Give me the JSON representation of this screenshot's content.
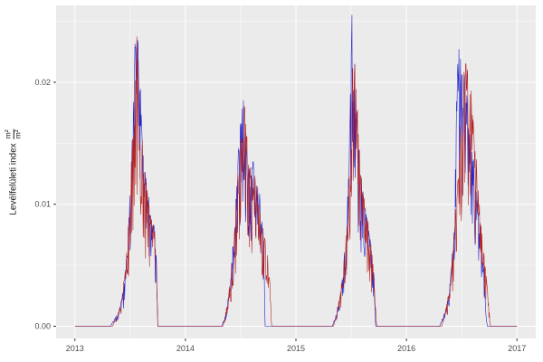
{
  "chart": {
    "theme": {
      "background": "#FFFFFF",
      "panel_background": "#EBEBEB",
      "grid_major_color": "#FFFFFF",
      "grid_minor_color": "#FFFFFF",
      "tick_label_color": "#4D4D4D",
      "tick_mark_color": "#333333",
      "axis_title_color": "#1A1A1A"
    }
  },
  "chart_data": {
    "type": "line",
    "title": "",
    "xlabel": "",
    "ylabel": "Levélfelületi index m²/m²",
    "ylabel_parts": {
      "text": "Levélfelületi index",
      "fraction_numerator": "m²",
      "fraction_denominator": "m²"
    },
    "x_ticks": [
      2013,
      2014,
      2015,
      2016,
      2017
    ],
    "y_ticks": [
      "0.00",
      "0.01",
      "0.02"
    ],
    "y_tick_values": [
      0,
      0.01,
      0.02
    ],
    "x_minor": [
      2013.5,
      2014.5,
      2015.5,
      2016.5
    ],
    "y_minor": [
      0.005,
      0.015,
      0.025
    ],
    "xlim": [
      2012.83,
      2017.17
    ],
    "ylim": [
      -0.001,
      0.0263
    ],
    "x_range_data": [
      2013,
      2017
    ],
    "grid": true,
    "legend": null,
    "samples_per_year": 280,
    "series": [
      {
        "name": "blue-line",
        "color": "#2323CC",
        "stroke_width": 0.6,
        "noise_seed": 11,
        "noise_depth": 0.5,
        "anchors": [
          [
            2013.0,
            0
          ],
          [
            2013.32,
            0
          ],
          [
            2013.36,
            0.0006
          ],
          [
            2013.4,
            0.0012
          ],
          [
            2013.44,
            0.003
          ],
          [
            2013.47,
            0.006
          ],
          [
            2013.5,
            0.011
          ],
          [
            2013.53,
            0.019
          ],
          [
            2013.555,
            0.0255
          ],
          [
            2013.58,
            0.022
          ],
          [
            2013.61,
            0.016
          ],
          [
            2013.64,
            0.012
          ],
          [
            2013.68,
            0.0095
          ],
          [
            2013.72,
            0.008
          ],
          [
            2013.74,
            0.005
          ],
          [
            2013.75,
            0
          ],
          [
            2014.33,
            0
          ],
          [
            2014.37,
            0.0012
          ],
          [
            2014.41,
            0.004
          ],
          [
            2014.45,
            0.009
          ],
          [
            2014.49,
            0.016
          ],
          [
            2014.515,
            0.0205
          ],
          [
            2014.54,
            0.017
          ],
          [
            2014.57,
            0.013
          ],
          [
            2014.61,
            0.0135
          ],
          [
            2014.65,
            0.012
          ],
          [
            2014.68,
            0.01
          ],
          [
            2014.71,
            0.007
          ],
          [
            2014.72,
            0
          ],
          [
            2015.33,
            0
          ],
          [
            2015.37,
            0.0012
          ],
          [
            2015.41,
            0.003
          ],
          [
            2015.45,
            0.007
          ],
          [
            2015.48,
            0.013
          ],
          [
            2015.505,
            0.025
          ],
          [
            2015.53,
            0.022
          ],
          [
            2015.56,
            0.016
          ],
          [
            2015.6,
            0.011
          ],
          [
            2015.64,
            0.009
          ],
          [
            2015.68,
            0.0065
          ],
          [
            2015.71,
            0.004
          ],
          [
            2015.72,
            0
          ],
          [
            2016.3,
            0
          ],
          [
            2016.35,
            0.0012
          ],
          [
            2016.39,
            0.003
          ],
          [
            2016.43,
            0.008
          ],
          [
            2016.47,
            0.0248
          ],
          [
            2016.5,
            0.021
          ],
          [
            2016.54,
            0.0195
          ],
          [
            2016.58,
            0.016
          ],
          [
            2016.62,
            0.012
          ],
          [
            2016.66,
            0.009
          ],
          [
            2016.7,
            0.005
          ],
          [
            2016.73,
            0
          ],
          [
            2017.0,
            0
          ]
        ]
      },
      {
        "name": "red-line",
        "color": "#B22222",
        "stroke_width": 0.6,
        "noise_seed": 77,
        "noise_depth": 0.55,
        "anchors": [
          [
            2013.0,
            0
          ],
          [
            2013.34,
            0
          ],
          [
            2013.38,
            0.0008
          ],
          [
            2013.42,
            0.002
          ],
          [
            2013.46,
            0.005
          ],
          [
            2013.49,
            0.009
          ],
          [
            2013.52,
            0.015
          ],
          [
            2013.555,
            0.0235
          ],
          [
            2013.58,
            0.021
          ],
          [
            2013.61,
            0.015
          ],
          [
            2013.64,
            0.0125
          ],
          [
            2013.68,
            0.0095
          ],
          [
            2013.72,
            0.008
          ],
          [
            2013.74,
            0.004
          ],
          [
            2013.75,
            0
          ],
          [
            2014.34,
            0
          ],
          [
            2014.38,
            0.002
          ],
          [
            2014.42,
            0.005
          ],
          [
            2014.46,
            0.01
          ],
          [
            2014.5,
            0.016
          ],
          [
            2014.525,
            0.0195
          ],
          [
            2014.55,
            0.016
          ],
          [
            2014.58,
            0.0125
          ],
          [
            2014.62,
            0.013
          ],
          [
            2014.66,
            0.011
          ],
          [
            2014.7,
            0.009
          ],
          [
            2014.74,
            0.006
          ],
          [
            2014.77,
            0.003
          ],
          [
            2014.78,
            0
          ],
          [
            2015.34,
            0
          ],
          [
            2015.38,
            0.0015
          ],
          [
            2015.42,
            0.004
          ],
          [
            2015.46,
            0.008
          ],
          [
            2015.5,
            0.015
          ],
          [
            2015.52,
            0.0235
          ],
          [
            2015.55,
            0.019
          ],
          [
            2015.58,
            0.013
          ],
          [
            2015.62,
            0.01
          ],
          [
            2015.66,
            0.008
          ],
          [
            2015.7,
            0.005
          ],
          [
            2015.73,
            0
          ],
          [
            2016.32,
            0
          ],
          [
            2016.37,
            0.002
          ],
          [
            2016.41,
            0.005
          ],
          [
            2016.45,
            0.01
          ],
          [
            2016.49,
            0.016
          ],
          [
            2016.53,
            0.0228
          ],
          [
            2016.57,
            0.0205
          ],
          [
            2016.61,
            0.016
          ],
          [
            2016.65,
            0.011
          ],
          [
            2016.69,
            0.007
          ],
          [
            2016.73,
            0.0035
          ],
          [
            2016.76,
            0
          ],
          [
            2017.0,
            0
          ]
        ]
      }
    ]
  }
}
